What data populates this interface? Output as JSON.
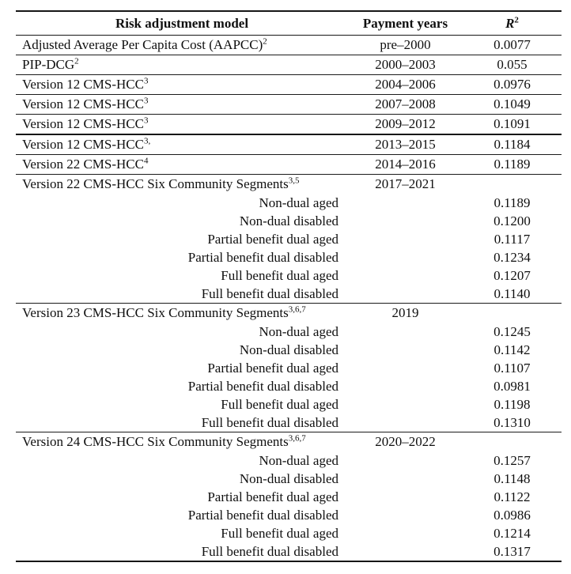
{
  "table": {
    "columns": [
      "Risk adjustment model",
      "Payment years",
      "R²"
    ],
    "r2_header": {
      "base": "R",
      "sup": "2"
    },
    "rows": [
      {
        "kind": "model",
        "name": "Adjusted Average Per Capita Cost (AAPCC)",
        "sup": "2",
        "years": "pre–2000",
        "r2": "0.0077",
        "divider": "normal"
      },
      {
        "kind": "model",
        "name": "PIP-DCG",
        "sup": "2",
        "years": "2000–2003",
        "r2": "0.055",
        "divider": "normal"
      },
      {
        "kind": "model",
        "name": "Version 12 CMS-HCC",
        "sup": "3",
        "years": "2004–2006",
        "r2": "0.0976",
        "divider": "normal"
      },
      {
        "kind": "model",
        "name": "Version 12 CMS-HCC",
        "sup": "3",
        "years": "2007–2008",
        "r2": "0.1049",
        "divider": "normal"
      },
      {
        "kind": "model",
        "name": "Version 12 CMS-HCC",
        "sup": "3",
        "years": "2009–2012",
        "r2": "0.1091",
        "divider": "thick"
      },
      {
        "kind": "model",
        "name": "Version 12 CMS-HCC",
        "sup": "3,",
        "years": "2013–2015",
        "r2": "0.1184",
        "divider": "normal"
      },
      {
        "kind": "model",
        "name": "Version 22 CMS-HCC",
        "sup": "4",
        "years": "2014–2016",
        "r2": "0.1189",
        "divider": "normal"
      },
      {
        "kind": "section",
        "name": "Version 22 CMS-HCC Six Community Segments",
        "sup": "3,5",
        "years": "2017–2021",
        "divider": "normal",
        "subrows": [
          {
            "label": "Non-dual aged",
            "r2": "0.1189"
          },
          {
            "label": "Non-dual disabled",
            "r2": "0.1200"
          },
          {
            "label": "Partial benefit dual aged",
            "r2": "0.1117"
          },
          {
            "label": "Partial benefit dual disabled",
            "r2": "0.1234"
          },
          {
            "label": "Full benefit dual aged",
            "r2": "0.1207"
          },
          {
            "label": "Full benefit dual disabled",
            "r2": "0.1140"
          }
        ]
      },
      {
        "kind": "section",
        "name": "Version 23 CMS-HCC Six Community Segments",
        "sup": "3,6,7",
        "years": "2019",
        "divider": "normal",
        "subrows": [
          {
            "label": "Non-dual aged",
            "r2": "0.1245"
          },
          {
            "label": "Non-dual disabled",
            "r2": "0.1142"
          },
          {
            "label": "Partial benefit dual aged",
            "r2": "0.1107"
          },
          {
            "label": "Partial benefit dual disabled",
            "r2": "0.0981"
          },
          {
            "label": "Full benefit dual aged",
            "r2": "0.1198"
          },
          {
            "label": "Full benefit dual disabled",
            "r2": "0.1310"
          }
        ]
      },
      {
        "kind": "section",
        "name": "Version 24 CMS-HCC Six Community Segments",
        "sup": "3,6,7",
        "years": "2020–2022",
        "divider": "none",
        "subrows": [
          {
            "label": "Non-dual aged",
            "r2": "0.1257"
          },
          {
            "label": "Non-dual disabled",
            "r2": "0.1148"
          },
          {
            "label": "Partial benefit dual aged",
            "r2": "0.1122"
          },
          {
            "label": "Partial benefit dual disabled",
            "r2": "0.0986"
          },
          {
            "label": "Full benefit dual aged",
            "r2": "0.1214"
          },
          {
            "label": "Full benefit dual disabled",
            "r2": "0.1317"
          }
        ]
      }
    ],
    "colors": {
      "text": "#0f0f0f",
      "rule": "#161616",
      "background": "#ffffff"
    }
  }
}
